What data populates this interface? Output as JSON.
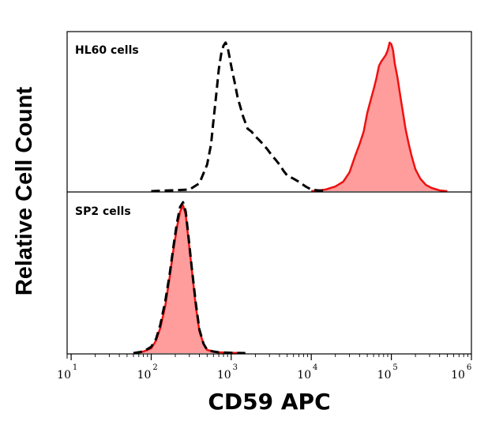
{
  "chart_data": [
    {
      "type": "area",
      "panel_label": "HL60 cells",
      "x_scale": "log",
      "xlim": [
        10,
        1000000
      ],
      "series": [
        {
          "style": "dashed",
          "color": "#000000",
          "fill": "none",
          "x": [
            100,
            300,
            400,
            500,
            560,
            600,
            650,
            700,
            750,
            800,
            850,
            900,
            950,
            1000,
            1100,
            1200,
            1400,
            1600,
            1800,
            2000,
            2200,
            2500,
            2800,
            3200,
            3600,
            4000,
            4500,
            5000,
            6000,
            7000,
            8500,
            10000,
            12000,
            15000
          ],
          "y": [
            0,
            0.01,
            0.05,
            0.17,
            0.3,
            0.45,
            0.62,
            0.78,
            0.88,
            0.93,
            0.95,
            0.92,
            0.86,
            0.8,
            0.7,
            0.6,
            0.48,
            0.4,
            0.38,
            0.35,
            0.33,
            0.3,
            0.27,
            0.23,
            0.2,
            0.17,
            0.13,
            0.1,
            0.08,
            0.06,
            0.03,
            0.01,
            0.005,
            0
          ]
        },
        {
          "style": "solid",
          "color": "#ee1111",
          "fill": "#ff9c9c",
          "x": [
            10000,
            15000,
            20000,
            25000,
            30000,
            35000,
            40000,
            45000,
            50000,
            55000,
            60000,
            65000,
            70000,
            75000,
            80000,
            85000,
            90000,
            95000,
            100000,
            105000,
            110000,
            120000,
            130000,
            140000,
            150000,
            165000,
            180000,
            200000,
            230000,
            270000,
            320000,
            400000,
            500000
          ],
          "y": [
            0,
            0.01,
            0.03,
            0.06,
            0.12,
            0.22,
            0.3,
            0.38,
            0.5,
            0.58,
            0.65,
            0.72,
            0.8,
            0.83,
            0.85,
            0.87,
            0.9,
            0.95,
            0.94,
            0.9,
            0.82,
            0.72,
            0.6,
            0.5,
            0.4,
            0.3,
            0.22,
            0.14,
            0.08,
            0.04,
            0.02,
            0.005,
            0
          ]
        }
      ]
    },
    {
      "type": "area",
      "panel_label": "SP2 cells",
      "x_scale": "log",
      "xlim": [
        10,
        1000000
      ],
      "series": [
        {
          "style": "dashed",
          "color": "#000000",
          "fill": "none",
          "x": [
            60,
            80,
            100,
            115,
            130,
            150,
            170,
            190,
            210,
            230,
            250,
            270,
            290,
            320,
            360,
            400,
            450,
            500,
            600,
            700,
            1000,
            1500
          ],
          "y": [
            0,
            0.01,
            0.04,
            0.09,
            0.18,
            0.33,
            0.5,
            0.68,
            0.83,
            0.93,
            0.96,
            0.9,
            0.76,
            0.55,
            0.32,
            0.15,
            0.06,
            0.02,
            0.01,
            0.005,
            0.002,
            0
          ]
        },
        {
          "style": "solid",
          "color": "#ee1111",
          "fill": "#ff9c9c",
          "x": [
            60,
            80,
            100,
            115,
            130,
            150,
            170,
            190,
            210,
            230,
            250,
            270,
            290,
            320,
            360,
            400,
            450,
            500,
            600,
            700,
            1000,
            1500
          ],
          "y": [
            0,
            0.01,
            0.03,
            0.08,
            0.16,
            0.3,
            0.48,
            0.66,
            0.8,
            0.9,
            0.94,
            0.88,
            0.74,
            0.54,
            0.3,
            0.14,
            0.06,
            0.02,
            0.01,
            0.005,
            0.002,
            0
          ]
        }
      ]
    }
  ],
  "axis": {
    "xlabel": "CD59 APC",
    "ylabel": "Relative Cell Count",
    "tick_base": "10",
    "tick_exponents": [
      "1",
      "2",
      "3",
      "4",
      "5",
      "6"
    ]
  }
}
